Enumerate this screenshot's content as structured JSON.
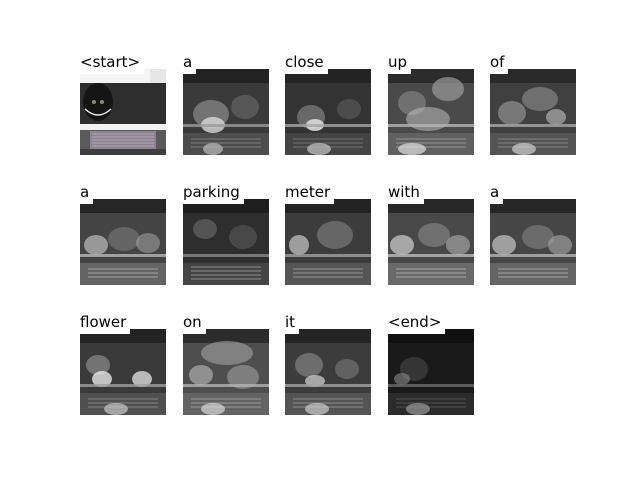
{
  "tokens": [
    {
      "word": "<start>",
      "kind": "photo"
    },
    {
      "word": "a",
      "kind": "attention"
    },
    {
      "word": "close",
      "kind": "attention"
    },
    {
      "word": "up",
      "kind": "attention"
    },
    {
      "word": "of",
      "kind": "attention"
    },
    {
      "word": "a",
      "kind": "attention"
    },
    {
      "word": "parking",
      "kind": "attention"
    },
    {
      "word": "meter",
      "kind": "attention"
    },
    {
      "word": "with",
      "kind": "attention"
    },
    {
      "word": "a",
      "kind": "attention"
    },
    {
      "word": "flower",
      "kind": "attention"
    },
    {
      "word": "on",
      "kind": "attention"
    },
    {
      "word": "it",
      "kind": "attention"
    },
    {
      "word": "<end>",
      "kind": "attention"
    }
  ]
}
